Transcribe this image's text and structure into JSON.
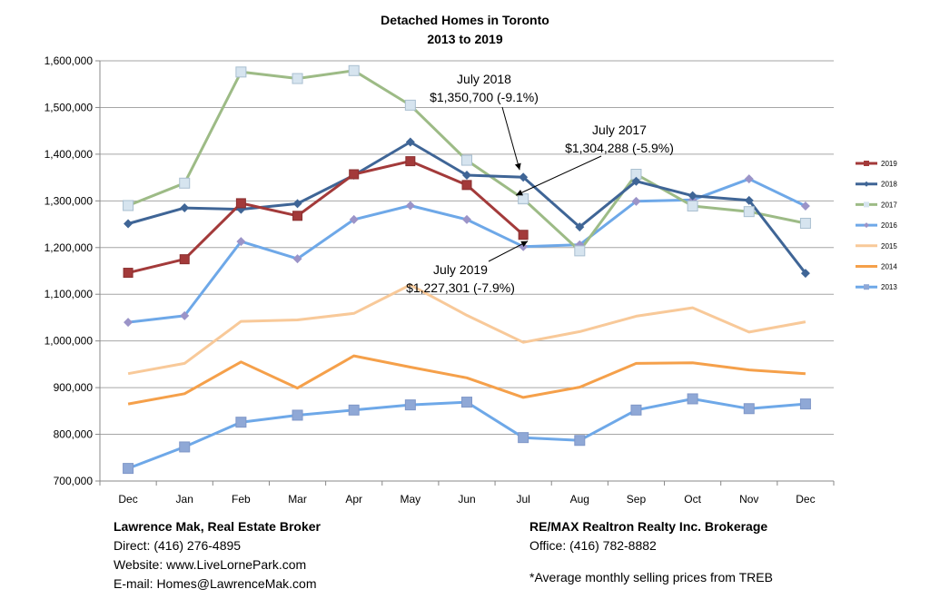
{
  "chart_data": {
    "type": "line",
    "title": "Detached Homes in Toronto",
    "subtitle": "2013 to 2019",
    "categories": [
      "Dec",
      "Jan",
      "Feb",
      "Mar",
      "Apr",
      "May",
      "Jun",
      "Jul",
      "Aug",
      "Sep",
      "Oct",
      "Nov",
      "Dec"
    ],
    "ylim": [
      700000,
      1600000
    ],
    "yticks": [
      700000,
      800000,
      900000,
      1000000,
      1100000,
      1200000,
      1300000,
      1400000,
      1500000,
      1600000
    ],
    "ytick_labels": [
      "700,000",
      "800,000",
      "900,000",
      "1,000,000",
      "1,100,000",
      "1,200,000",
      "1,300,000",
      "1,400,000",
      "1,500,000",
      "1,600,000"
    ],
    "grid": true,
    "legend_position": "right",
    "series": [
      {
        "name": "2019",
        "color": "#a33a3a",
        "marker": "square",
        "values": [
          1146000,
          1175000,
          1295000,
          1268000,
          1357000,
          1385000,
          1334000,
          1227301,
          null,
          null,
          null,
          null,
          null
        ]
      },
      {
        "name": "2018",
        "color": "#3f6596",
        "marker": "diamond",
        "values": [
          1251000,
          1285000,
          1282000,
          1294000,
          1355000,
          1426000,
          1355000,
          1350700,
          1244000,
          1342000,
          1311000,
          1301000,
          1145000
        ]
      },
      {
        "name": "2017",
        "color": "#9dbb86",
        "marker": "square-light",
        "values": [
          1290000,
          1338000,
          1576000,
          1562000,
          1579000,
          1505000,
          1387000,
          1304288,
          1193000,
          1357000,
          1289000,
          1277000,
          1252000
        ]
      },
      {
        "name": "2016",
        "color": "#6ea8e8",
        "marker": "diamond-purple",
        "values": [
          1040000,
          1054000,
          1213000,
          1176000,
          1260000,
          1290000,
          1260000,
          1202000,
          1206000,
          1299000,
          1302000,
          1347000,
          1289000
        ]
      },
      {
        "name": "2015",
        "color": "#f8c999",
        "marker": "none",
        "values": [
          930000,
          952000,
          1042000,
          1045000,
          1059000,
          1120000,
          1055000,
          997000,
          1020000,
          1053000,
          1071000,
          1019000,
          1041000
        ]
      },
      {
        "name": "2014",
        "color": "#f5a04a",
        "marker": "none",
        "values": [
          865000,
          887000,
          955000,
          899000,
          968000,
          944000,
          921000,
          879000,
          901000,
          952000,
          953000,
          938000,
          930000
        ]
      },
      {
        "name": "2013",
        "color": "#6ea8e8",
        "marker": "square-blue",
        "values": [
          727000,
          773000,
          826000,
          841000,
          852000,
          863000,
          869000,
          793000,
          787000,
          852000,
          876000,
          855000,
          865000
        ]
      }
    ],
    "annotations": [
      {
        "line1": "July 2018",
        "line2": "$1,350,700 (-9.1%)",
        "series": "2018",
        "index": 7
      },
      {
        "line1": "July 2017",
        "line2": "$1,304,288 (-5.9%)",
        "series": "2017",
        "index": 7
      },
      {
        "line1": "July 2019",
        "line2": "$1,227,301 (-7.9%)",
        "series": "2019",
        "index": 7
      }
    ]
  },
  "footer": {
    "left": {
      "name": "Lawrence Mak, Real Estate Broker",
      "direct": "Direct:  (416) 276-4895",
      "website": "Website:  www.LiveLornePark.com",
      "email": "E-mail:  Homes@LawrenceMak.com"
    },
    "right": {
      "brokerage": "RE/MAX Realtron Realty Inc. Brokerage",
      "office": "Office: (416) 782-8882",
      "note": "*Average monthly selling prices from TREB"
    }
  }
}
